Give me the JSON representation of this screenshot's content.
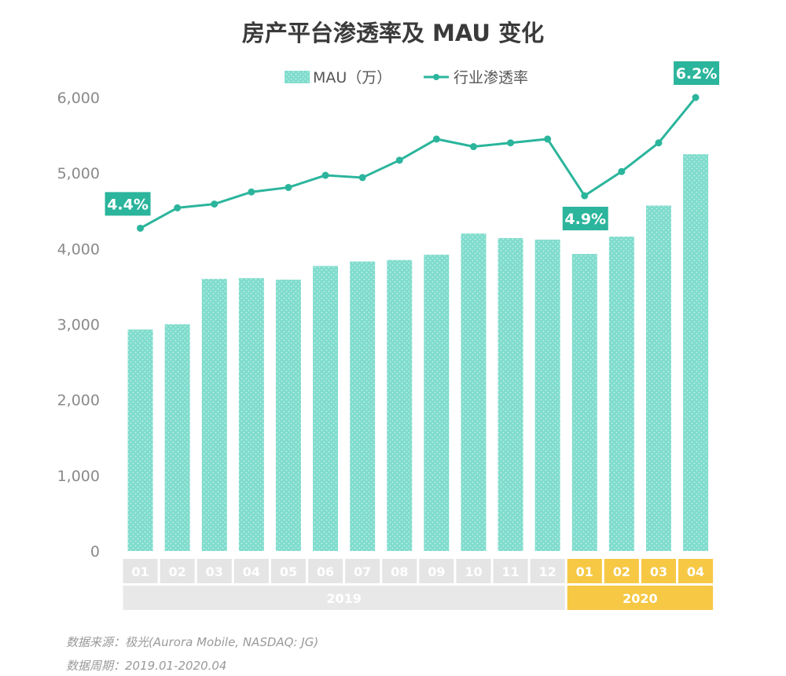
{
  "chart_data": {
    "type": "bar+line",
    "title": "房产平台渗透率及 MAU 变化",
    "legend": [
      {
        "name": "MAU（万）",
        "marker": "bar"
      },
      {
        "name": "行业渗透率",
        "marker": "line"
      }
    ],
    "legend_position": "top-center",
    "categories": [
      "01",
      "02",
      "03",
      "04",
      "05",
      "06",
      "07",
      "08",
      "09",
      "10",
      "11",
      "12",
      "01",
      "02",
      "03",
      "04"
    ],
    "year_groups": [
      {
        "label": "2019",
        "count": 12
      },
      {
        "label": "2020",
        "count": 4
      }
    ],
    "y_ticks": [
      "0",
      "1,000",
      "2,000",
      "3,000",
      "4,000",
      "5,000",
      "6,000"
    ],
    "ylim": [
      0,
      6000
    ],
    "grid": false,
    "series": [
      {
        "name": "MAU（万）",
        "type": "bar",
        "values": [
          2930,
          3000,
          3600,
          3610,
          3590,
          3770,
          3830,
          3850,
          3920,
          4200,
          4140,
          4120,
          3930,
          4160,
          4570,
          5250
        ]
      },
      {
        "name": "行业渗透率",
        "type": "line",
        "values": [
          4.4,
          4.52,
          4.55,
          4.64,
          4.68,
          4.78,
          4.77,
          4.9,
          5.05,
          4.99,
          5.01,
          5.03,
          4.9,
          5.02,
          5.39,
          6.2
        ],
        "point_y_on_mau_scale": [
          4270,
          4540,
          4590,
          4750,
          4810,
          4970,
          4940,
          5170,
          5450,
          5350,
          5400,
          5450,
          4700,
          5020,
          5400,
          6000
        ],
        "labeled_points": [
          {
            "index": 0,
            "text": "4.4%"
          },
          {
            "index": 12,
            "text": "4.9%"
          },
          {
            "index": 15,
            "text": "6.2%"
          }
        ]
      }
    ]
  },
  "footer": {
    "source": "数据来源：极光(Aurora Mobile, NASDAQ: JG)",
    "period": "数据周期：2019.01-2020.04"
  },
  "colors": {
    "bar": "#7fdccd",
    "bar_dot": "#ffffff",
    "line": "#2bb59c",
    "axis_text": "#8a8a8a",
    "title": "#3a3a3a",
    "label_bg": "#2bb59c",
    "month_2019_bg": "#e5e5e5",
    "month_2020_bg": "#f6c844",
    "year_2019_bg": "#e8e8e8",
    "year_2020_bg": "#f6c844"
  }
}
